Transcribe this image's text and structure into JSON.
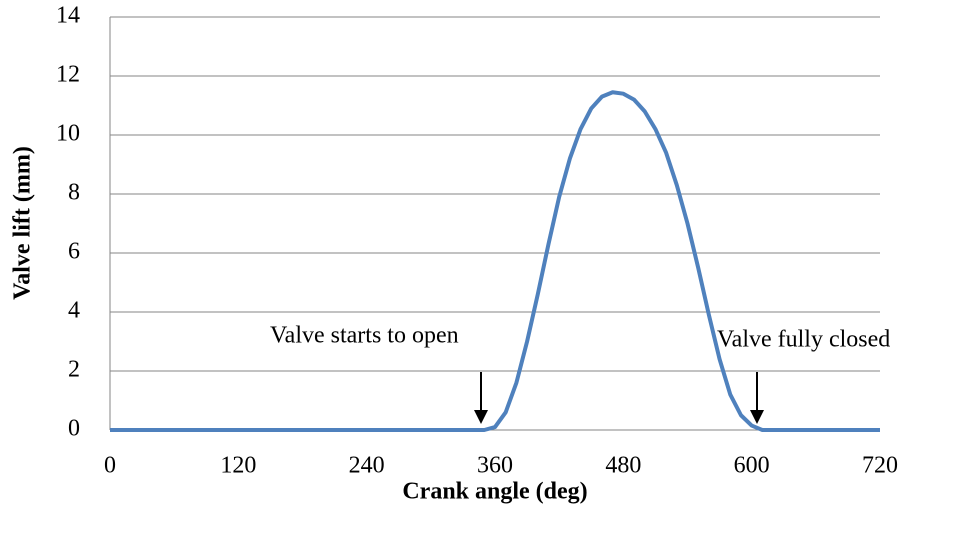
{
  "chart_data": {
    "type": "line",
    "xlabel": "Crank angle (deg)",
    "ylabel": "Valve lift (mm)",
    "x": [
      0,
      350,
      360,
      370,
      380,
      390,
      400,
      410,
      420,
      430,
      440,
      450,
      460,
      470,
      480,
      490,
      500,
      510,
      520,
      530,
      540,
      550,
      560,
      570,
      580,
      590,
      600,
      610,
      720
    ],
    "values": [
      0,
      0,
      0.1,
      0.6,
      1.6,
      3.0,
      4.6,
      6.3,
      7.9,
      9.2,
      10.2,
      10.9,
      11.3,
      11.45,
      11.4,
      11.2,
      10.8,
      10.2,
      9.4,
      8.3,
      7.0,
      5.5,
      3.9,
      2.4,
      1.2,
      0.5,
      0.15,
      0,
      0
    ],
    "color": "#4f81bd",
    "xlim": [
      0,
      720
    ],
    "xticks": [
      0,
      120,
      240,
      360,
      480,
      600,
      720
    ],
    "ylim": [
      0,
      14
    ],
    "yticks": [
      0,
      2,
      4,
      6,
      8,
      10,
      12,
      14
    ],
    "grid": true,
    "annotations": [
      {
        "text": "Valve starts to open"
      },
      {
        "text": "Valve fully closed"
      }
    ]
  }
}
